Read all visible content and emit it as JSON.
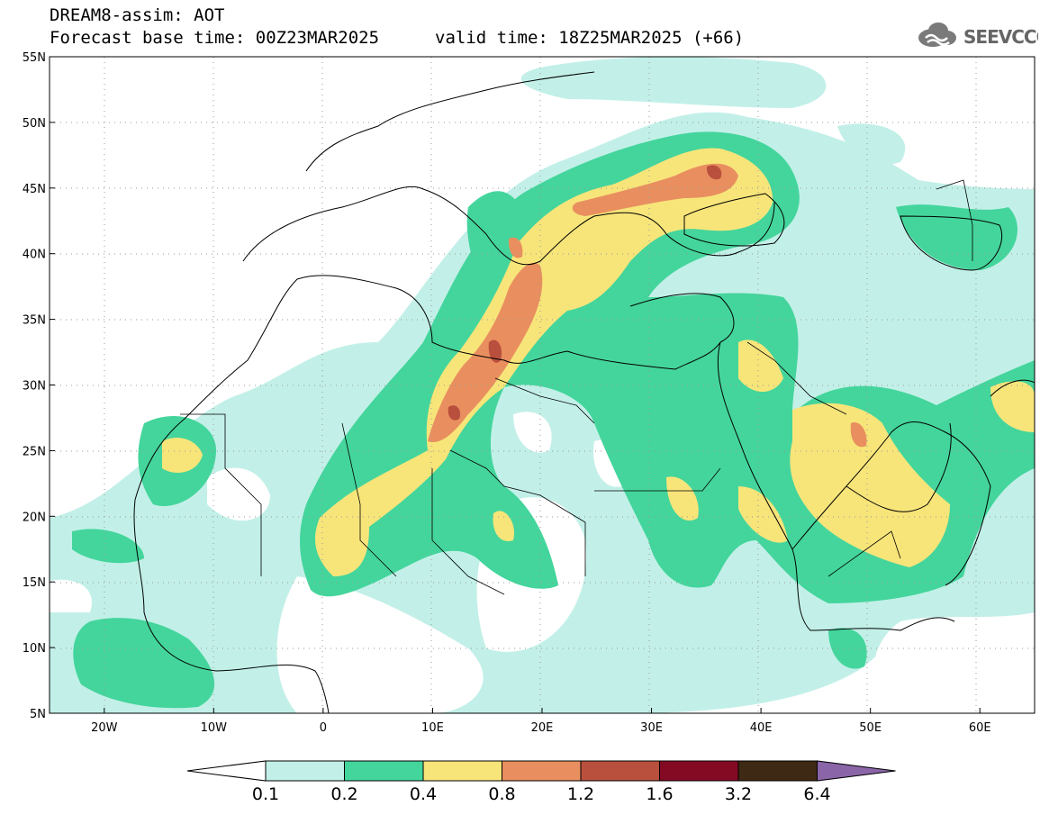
{
  "header": {
    "product": "DREAM8-assim: AOT",
    "base_time": "Forecast base time: 00Z23MAR2025",
    "valid_time": "valid time: 18Z25MAR2025 (+66)"
  },
  "logo": {
    "text": "SEEVCCC",
    "icon": "cloud-icon"
  },
  "map": {
    "lon_range": [
      -25,
      65
    ],
    "lat_range": [
      5,
      55
    ],
    "lon_ticks": [
      {
        "v": -20,
        "label": "20W"
      },
      {
        "v": -10,
        "label": "10W"
      },
      {
        "v": 0,
        "label": "0"
      },
      {
        "v": 10,
        "label": "10E"
      },
      {
        "v": 20,
        "label": "20E"
      },
      {
        "v": 30,
        "label": "30E"
      },
      {
        "v": 40,
        "label": "40E"
      },
      {
        "v": 50,
        "label": "50E"
      },
      {
        "v": 60,
        "label": "60E"
      }
    ],
    "lat_ticks": [
      {
        "v": 5,
        "label": "5N"
      },
      {
        "v": 10,
        "label": "10N"
      },
      {
        "v": 15,
        "label": "15N"
      },
      {
        "v": 20,
        "label": "20N"
      },
      {
        "v": 25,
        "label": "25N"
      },
      {
        "v": 30,
        "label": "30N"
      },
      {
        "v": 35,
        "label": "35N"
      },
      {
        "v": 40,
        "label": "40N"
      },
      {
        "v": 45,
        "label": "45N"
      },
      {
        "v": 50,
        "label": "50N"
      },
      {
        "v": 55,
        "label": "55N"
      }
    ]
  },
  "colorbar": {
    "thresholds": [
      "0.1",
      "0.2",
      "0.4",
      "0.8",
      "1.2",
      "1.6",
      "3.2",
      "6.4"
    ],
    "colors": [
      "#ffffff",
      "#c2f0e8",
      "#44d59c",
      "#f7e57a",
      "#e98f5f",
      "#b94f3d",
      "#840a24",
      "#3e2915",
      "#8a65a8"
    ]
  },
  "colors": {
    "c1": "#c2f0e8",
    "c2": "#44d59c",
    "c3": "#f7e57a",
    "c4": "#e98f5f",
    "c5": "#b94f3d",
    "c6": "#840a24"
  }
}
